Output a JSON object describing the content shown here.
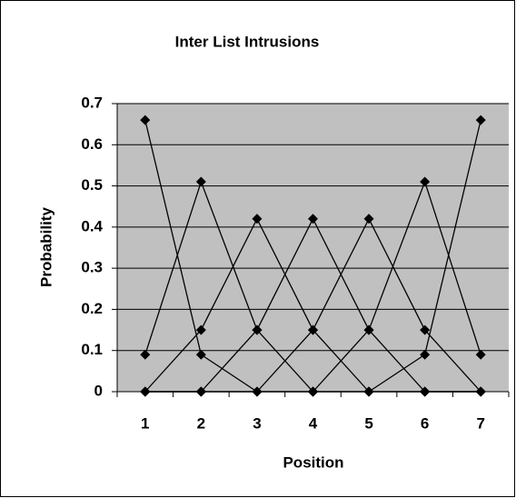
{
  "chart_data": {
    "type": "line",
    "title": "Inter List Intrusions",
    "x_label": "Position",
    "y_label": "Probability",
    "categories": [
      "1",
      "2",
      "3",
      "4",
      "5",
      "6",
      "7"
    ],
    "series": [
      {
        "color": "#000000",
        "values": [
          0.66,
          0.09,
          0,
          0,
          0,
          0,
          0
        ]
      },
      {
        "color": "#000000",
        "values": [
          0.09,
          0.51,
          0.15,
          0,
          0,
          0,
          0
        ]
      },
      {
        "color": "#000000",
        "values": [
          0,
          0.15,
          0.42,
          0.15,
          0,
          0,
          0
        ]
      },
      {
        "color": "#000000",
        "values": [
          0,
          0,
          0.15,
          0.42,
          0.15,
          0,
          0
        ]
      },
      {
        "color": "#000000",
        "values": [
          0,
          0,
          0,
          0.15,
          0.42,
          0.15,
          0
        ]
      },
      {
        "color": "#000000",
        "values": [
          0,
          0,
          0,
          0,
          0.15,
          0.51,
          0.09
        ]
      },
      {
        "color": "#000000",
        "values": [
          0,
          0,
          0,
          0,
          0,
          0.09,
          0.66
        ]
      }
    ],
    "ylim": [
      0,
      0.7
    ],
    "yticks": [
      0,
      0.1,
      0.2,
      0.3,
      0.4,
      0.5,
      0.6,
      0.7
    ],
    "grid": true,
    "plot_background": "#c0c0c0"
  }
}
